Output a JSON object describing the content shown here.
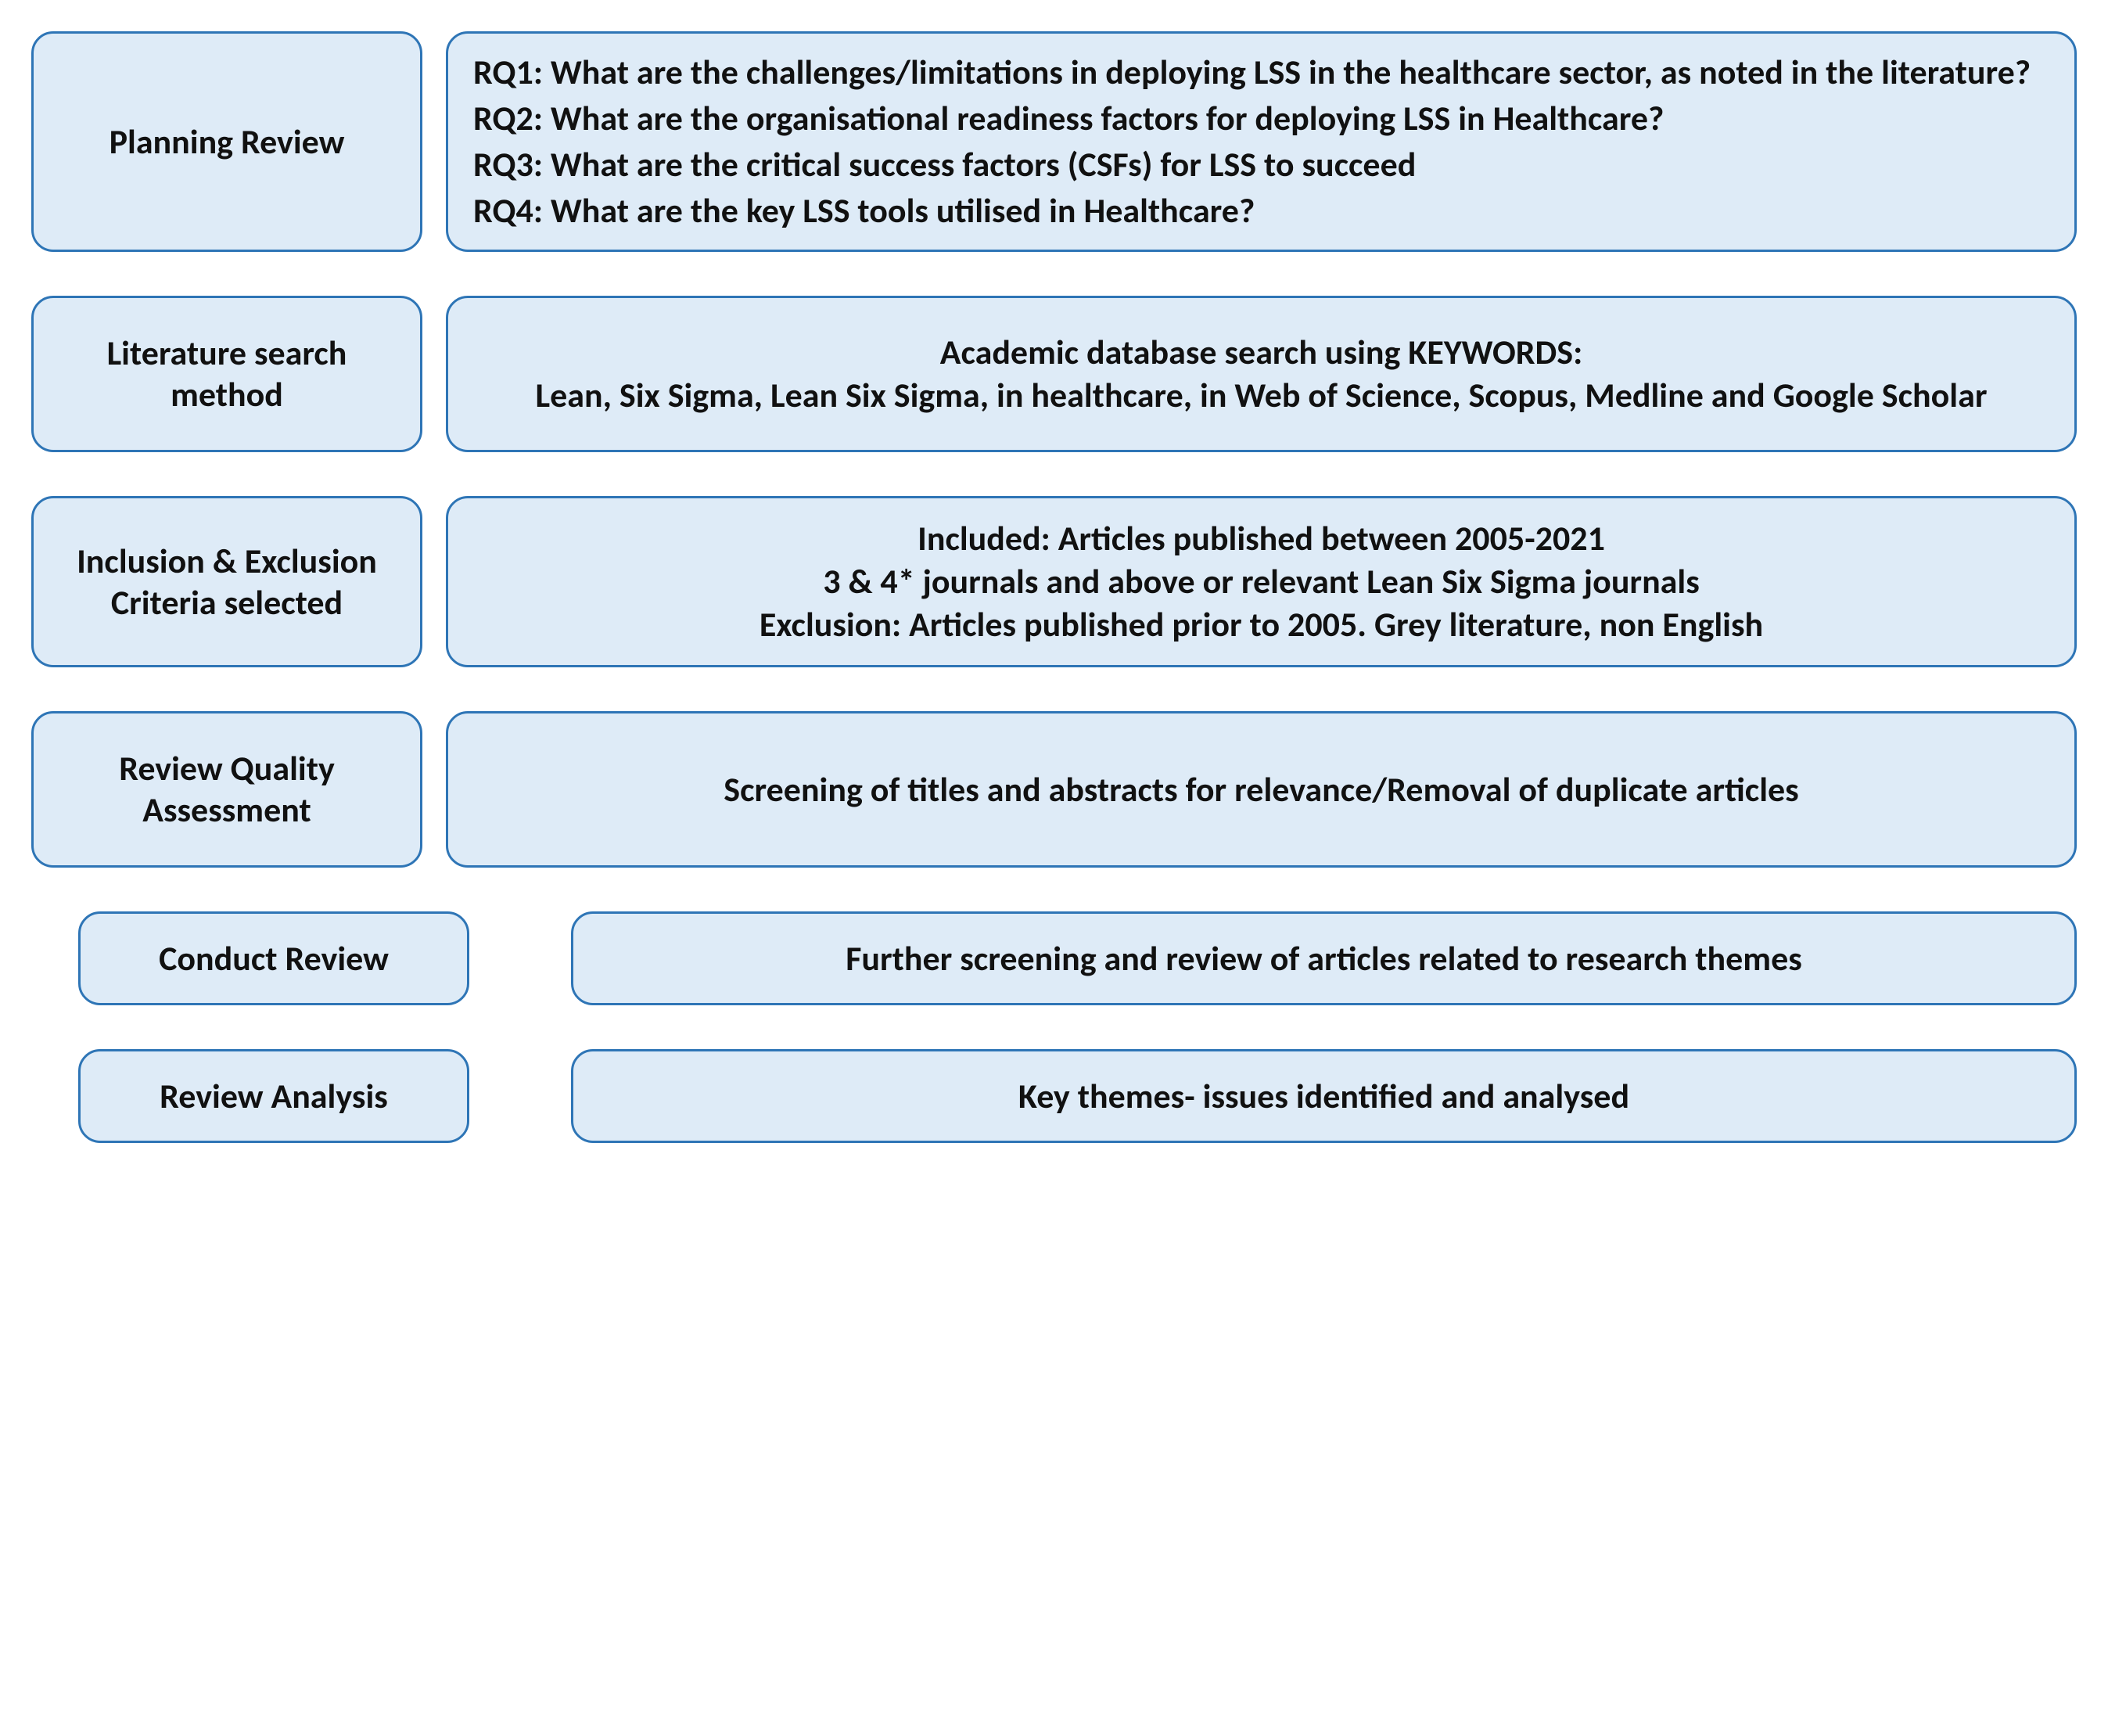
{
  "colors": {
    "box_fill": "#deebf7",
    "box_border": "#2e75b6",
    "text": "#111111",
    "bg": "#ffffff"
  },
  "rows": [
    {
      "label": "Planning Review",
      "align": "left",
      "lines": [
        "RQ1: What are the challenges/limitations in deploying LSS in the healthcare sector, as noted in the literature?",
        "RQ2: What are the organisational readiness factors for deploying LSS in Healthcare?",
        "RQ3: What are the critical success factors (CSFs) for LSS to succeed",
        "RQ4: What are the key LSS tools utilised in Healthcare?"
      ]
    },
    {
      "label": "Literature search method",
      "align": "center",
      "lines": [
        "Academic database search using KEYWORDS:",
        "Lean, Six Sigma, Lean Six Sigma, in healthcare, in  Web of Science, Scopus, Medline and Google Scholar"
      ]
    },
    {
      "label": "Inclusion & Exclusion Criteria selected",
      "align": "center",
      "lines": [
        "Included: Articles published between 2005-2021",
        "3 & 4* journals and above or relevant Lean Six Sigma journals",
        "Exclusion: Articles published prior to 2005. Grey literature, non English"
      ]
    },
    {
      "label": "Review Quality Assessment",
      "align": "center",
      "lines": [
        "Screening of titles and abstracts for relevance/Removal of duplicate articles"
      ]
    },
    {
      "label": "Conduct Review",
      "align": "center",
      "indented": true,
      "lines": [
        "Further screening and review of articles related to research themes"
      ]
    },
    {
      "label": "Review Analysis",
      "align": "center",
      "indented": true,
      "lines": [
        "Key themes- issues identified and analysed"
      ]
    }
  ]
}
